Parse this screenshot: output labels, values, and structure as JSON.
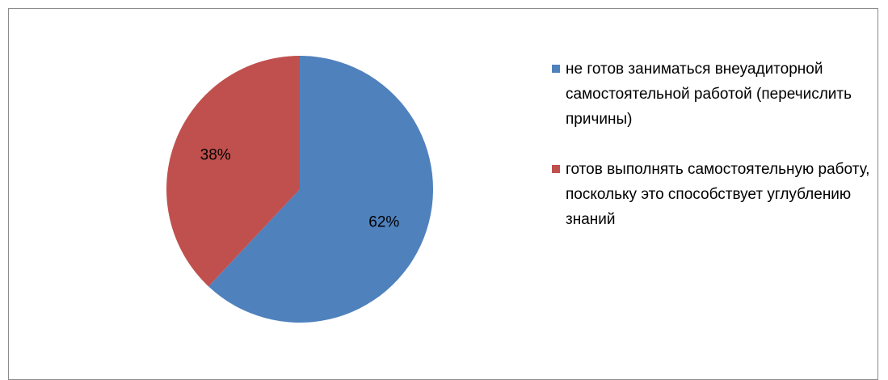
{
  "chart_data": {
    "type": "pie",
    "categories": [
      "не готов заниматься внеуадиторной самостоятельной работой (перечислить причины)",
      "готов выполнять самостоятельную работу, поскольку это способствует углублению знаний"
    ],
    "values": [
      62,
      38
    ],
    "value_labels": [
      "62%",
      "38%"
    ],
    "colors": [
      "#4f81bd",
      "#c0504d"
    ],
    "legend": "right"
  }
}
